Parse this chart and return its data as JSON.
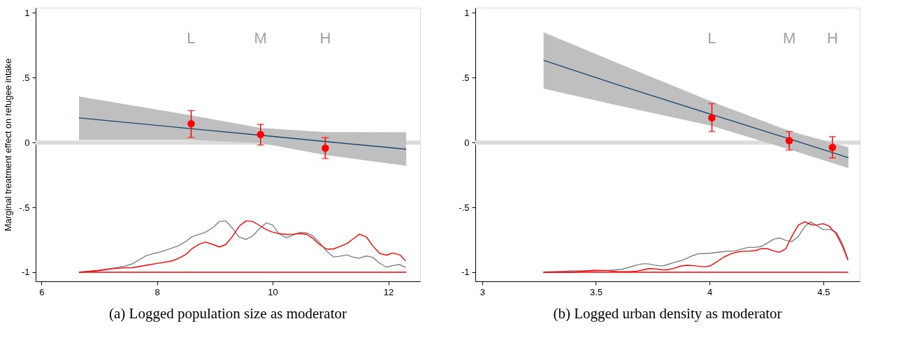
{
  "chart_data": [
    {
      "type": "line",
      "title": "(a) Logged population size as moderator",
      "ylabel": "Marginal treatment effect on refugee intake",
      "xlim": [
        5.9,
        12.55
      ],
      "ylim": [
        -1.07,
        1.04
      ],
      "xticks": [
        6,
        8,
        10,
        12
      ],
      "yticks": [
        {
          "value": -1,
          "label": "-1"
        },
        {
          "value": -0.5,
          "label": "-.5"
        },
        {
          "value": 0,
          "label": "0"
        },
        {
          "value": 0.5,
          "label": ".5"
        },
        {
          "value": 1,
          "label": "1"
        }
      ],
      "grid": false,
      "ref_lines": [
        {
          "axis": "y",
          "value": 0,
          "color": "#dcdcdc"
        }
      ],
      "annotations": [
        "L",
        "M",
        "H"
      ],
      "series": [
        {
          "color": "#1a476f",
          "x": [
            6.65,
            8.59,
            9.79,
            10.91,
            12.31
          ],
          "values": [
            0.19,
            0.107,
            0.056,
            0.008,
            -0.051
          ],
          "lower": [
            0.02,
            0.02,
            -0.004,
            -0.096,
            -0.179
          ],
          "upper": [
            0.355,
            0.21,
            0.113,
            0.081,
            0.079
          ]
        },
        {
          "color": "#808080",
          "x": [
            6.65,
            6.97,
            7.22,
            7.45,
            7.58,
            7.81,
            7.94,
            8.02,
            8.23,
            8.38,
            8.51,
            8.61,
            8.84,
            8.97,
            9.08,
            9.19,
            9.31,
            9.42,
            9.54,
            9.65,
            9.77,
            9.89,
            10.0,
            10.11,
            10.24,
            10.36,
            10.47,
            10.59,
            10.7,
            10.81,
            10.93,
            11.05,
            11.16,
            11.28,
            11.4,
            11.5,
            11.62,
            11.73,
            11.85,
            11.97,
            12.08,
            12.2,
            12.3
          ],
          "values": [
            -1.0,
            -0.985,
            -0.97,
            -0.953,
            -0.933,
            -0.873,
            -0.855,
            -0.849,
            -0.818,
            -0.795,
            -0.758,
            -0.725,
            -0.691,
            -0.654,
            -0.609,
            -0.604,
            -0.664,
            -0.729,
            -0.747,
            -0.721,
            -0.665,
            -0.619,
            -0.636,
            -0.703,
            -0.734,
            -0.712,
            -0.693,
            -0.697,
            -0.721,
            -0.771,
            -0.836,
            -0.882,
            -0.877,
            -0.866,
            -0.885,
            -0.892,
            -0.875,
            -0.885,
            -0.93,
            -0.961,
            -0.948,
            -0.941,
            -0.963
          ]
        },
        {
          "color": "#ff0000",
          "x": [
            6.65,
            6.97,
            7.22,
            7.39,
            7.58,
            7.81,
            8.02,
            8.25,
            8.38,
            8.51,
            8.61,
            8.74,
            8.84,
            8.97,
            9.08,
            9.19,
            9.31,
            9.42,
            9.54,
            9.65,
            9.77,
            9.89,
            10.0,
            10.11,
            10.24,
            10.36,
            10.47,
            10.59,
            10.7,
            10.81,
            10.93,
            11.05,
            11.16,
            11.28,
            11.4,
            11.5,
            11.62,
            11.73,
            11.85,
            11.97,
            12.08,
            12.2,
            12.3
          ],
          "values": [
            -1.0,
            -0.989,
            -0.974,
            -0.967,
            -0.965,
            -0.946,
            -0.931,
            -0.914,
            -0.892,
            -0.859,
            -0.816,
            -0.781,
            -0.768,
            -0.786,
            -0.805,
            -0.786,
            -0.721,
            -0.645,
            -0.604,
            -0.608,
            -0.638,
            -0.671,
            -0.691,
            -0.702,
            -0.708,
            -0.706,
            -0.701,
            -0.708,
            -0.74,
            -0.786,
            -0.821,
            -0.821,
            -0.802,
            -0.78,
            -0.74,
            -0.706,
            -0.727,
            -0.796,
            -0.855,
            -0.868,
            -0.851,
            -0.866,
            -0.911
          ]
        },
        {
          "color": "#ff0000",
          "x": [
            6.65,
            12.31
          ],
          "values": [
            -1,
            -1
          ]
        },
        {
          "type": "scatter",
          "color": "#ff0000",
          "marker": "circle",
          "x": [
            8.59,
            9.79,
            10.91
          ],
          "values": [
            0.145,
            0.062,
            -0.043
          ],
          "errors": [
            [
              0.04,
              0.247
            ],
            [
              -0.019,
              0.14
            ],
            [
              -0.123,
              0.038
            ]
          ]
        }
      ]
    },
    {
      "type": "line",
      "title": "(b) Logged urban density as moderator",
      "xlim": [
        2.97,
        4.66
      ],
      "ylim": [
        -1.07,
        1.04
      ],
      "xticks": [
        3,
        3.5,
        4,
        4.5
      ],
      "yticks": [
        {
          "value": -1,
          "label": "-1"
        },
        {
          "value": -0.5,
          "label": "-.5"
        },
        {
          "value": 0,
          "label": "0"
        },
        {
          "value": 0.5,
          "label": ".5"
        },
        {
          "value": 1,
          "label": "1"
        }
      ],
      "grid": false,
      "ref_lines": [
        {
          "axis": "y",
          "value": 0,
          "color": "#dcdcdc"
        }
      ],
      "annotations": [
        "L",
        "M",
        "H"
      ],
      "series": [
        {
          "color": "#1a476f",
          "x": [
            3.27,
            3.6,
            4.01,
            4.35,
            4.61
          ],
          "values": [
            0.634,
            0.443,
            0.216,
            0.029,
            -0.117
          ],
          "lower": [
            0.415,
            0.285,
            0.128,
            -0.053,
            -0.196
          ],
          "upper": [
            0.85,
            0.61,
            0.315,
            0.09,
            -0.036
          ]
        },
        {
          "color": "#808080",
          "x": [
            3.269,
            3.393,
            3.478,
            3.563,
            3.617,
            3.648,
            3.68,
            3.707,
            3.728,
            3.755,
            3.787,
            3.813,
            3.845,
            3.872,
            3.898,
            3.925,
            3.951,
            4.004,
            4.063,
            4.111,
            4.169,
            4.201,
            4.228,
            4.254,
            4.281,
            4.307,
            4.334,
            4.361,
            4.39,
            4.419,
            4.443,
            4.472,
            4.499,
            4.531,
            4.557,
            4.584,
            4.608
          ],
          "values": [
            -1.0,
            -0.989,
            -0.989,
            -0.985,
            -0.976,
            -0.961,
            -0.944,
            -0.935,
            -0.935,
            -0.944,
            -0.952,
            -0.942,
            -0.924,
            -0.911,
            -0.894,
            -0.872,
            -0.857,
            -0.853,
            -0.84,
            -0.835,
            -0.808,
            -0.808,
            -0.801,
            -0.775,
            -0.745,
            -0.736,
            -0.753,
            -0.764,
            -0.723,
            -0.645,
            -0.612,
            -0.641,
            -0.671,
            -0.671,
            -0.691,
            -0.78,
            -0.898
          ]
        },
        {
          "color": "#ff0000",
          "x": [
            3.269,
            3.393,
            3.436,
            3.489,
            3.542,
            3.595,
            3.648,
            3.68,
            3.712,
            3.733,
            3.76,
            3.787,
            3.813,
            3.845,
            3.872,
            3.898,
            3.925,
            3.978,
            4.004,
            4.031,
            4.063,
            4.095,
            4.121,
            4.148,
            4.175,
            4.201,
            4.228,
            4.254,
            4.281,
            4.307,
            4.334,
            4.361,
            4.39,
            4.419,
            4.448,
            4.472,
            4.499,
            4.525,
            4.557,
            4.584,
            4.608
          ],
          "values": [
            -1.0,
            -1.0,
            -0.994,
            -0.985,
            -0.987,
            -0.994,
            -0.996,
            -0.991,
            -0.98,
            -0.972,
            -0.974,
            -0.98,
            -0.981,
            -0.97,
            -0.953,
            -0.946,
            -0.948,
            -0.959,
            -0.95,
            -0.92,
            -0.883,
            -0.857,
            -0.844,
            -0.838,
            -0.838,
            -0.833,
            -0.818,
            -0.818,
            -0.835,
            -0.846,
            -0.821,
            -0.725,
            -0.636,
            -0.61,
            -0.634,
            -0.636,
            -0.625,
            -0.643,
            -0.706,
            -0.799,
            -0.907
          ]
        },
        {
          "color": "#ff0000",
          "x": [
            3.269,
            4.61
          ],
          "values": [
            -1,
            -1
          ]
        },
        {
          "type": "scatter",
          "color": "#ff0000",
          "marker": "circle",
          "x": [
            4.01,
            4.35,
            4.54
          ],
          "values": [
            0.19,
            0.015,
            -0.038
          ],
          "errors": [
            [
              0.085,
              0.3
            ],
            [
              -0.057,
              0.085
            ],
            [
              -0.119,
              0.045
            ]
          ]
        }
      ]
    }
  ]
}
